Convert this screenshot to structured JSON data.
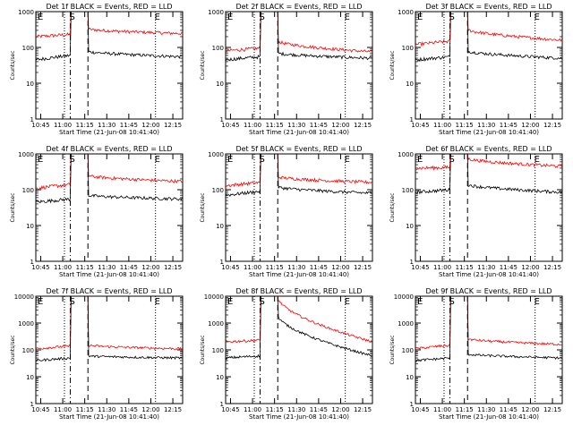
{
  "chart_data": [
    {
      "type": "line",
      "title": "Det 1f BLACK = Events, RED = LLD",
      "xlabel": "Start Time (21-Jun-08 10:41:40)",
      "ylabel": "Counts/sec",
      "xticks": [
        "10:45",
        "11:00",
        "11:15",
        "11:30",
        "11:45",
        "12:00",
        "12:15"
      ],
      "yticks": [
        "1",
        "10",
        "100",
        "1000"
      ],
      "yscale": "log",
      "ylim": [
        1,
        1000
      ],
      "markers": {
        "first_E": "E",
        "S": "S",
        "last_E": "E"
      },
      "series": [
        {
          "color": "#ff0000",
          "pre": [
            200,
            230
          ],
          "post": [
            330,
            245
          ]
        },
        {
          "color": "#000000",
          "pre": [
            45,
            60
          ],
          "post": [
            78,
            55
          ]
        }
      ]
    },
    {
      "type": "line",
      "title": "Det 2f BLACK = Events, RED = LLD",
      "xlabel": "Start Time (21-Jun-08 10:41:40)",
      "ylabel": "Counts/sec",
      "xticks": [
        "10:45",
        "11:00",
        "11:15",
        "11:30",
        "11:45",
        "12:00",
        "12:15"
      ],
      "yticks": [
        "1",
        "10",
        "100",
        "1000"
      ],
      "yscale": "log",
      "ylim": [
        1,
        1000
      ],
      "markers": {
        "first_E": "E",
        "S": "S",
        "last_E": "E"
      },
      "series": [
        {
          "color": "#ff0000",
          "pre": [
            80,
            95
          ],
          "post": [
            150,
            75
          ]
        },
        {
          "color": "#000000",
          "pre": [
            45,
            55
          ],
          "post": [
            70,
            50
          ]
        }
      ]
    },
    {
      "type": "line",
      "title": "Det 3f BLACK = Events, RED = LLD",
      "xlabel": "Start Time (21-Jun-08 10:41:40)",
      "ylabel": "Counts/sec",
      "xticks": [
        "10:45",
        "11:00",
        "11:15",
        "11:30",
        "11:45",
        "12:00",
        "12:15"
      ],
      "yticks": [
        "1",
        "10",
        "100",
        "1000"
      ],
      "yscale": "log",
      "ylim": [
        1,
        1000
      ],
      "markers": {
        "first_E": "E",
        "S": "S",
        "last_E": "E"
      },
      "series": [
        {
          "color": "#ff0000",
          "pre": [
            120,
            150
          ],
          "post": [
            320,
            160
          ]
        },
        {
          "color": "#000000",
          "pre": [
            45,
            55
          ],
          "post": [
            80,
            50
          ]
        }
      ]
    },
    {
      "type": "line",
      "title": "Det 4f BLACK = Events, RED = LLD",
      "xlabel": "Start Time (21-Jun-08 10:41:40)",
      "ylabel": "Counts/sec",
      "xticks": [
        "10:45",
        "11:00",
        "11:15",
        "11:30",
        "11:45",
        "12:00",
        "12:15"
      ],
      "yticks": [
        "1",
        "10",
        "100",
        "1000"
      ],
      "yscale": "log",
      "ylim": [
        1,
        1000
      ],
      "markers": {
        "first_E": "E",
        "S": "S",
        "last_E": "E"
      },
      "series": [
        {
          "color": "#ff0000",
          "pre": [
            110,
            140
          ],
          "post": [
            250,
            170
          ]
        },
        {
          "color": "#000000",
          "pre": [
            45,
            55
          ],
          "post": [
            70,
            55
          ]
        }
      ]
    },
    {
      "type": "line",
      "title": "Det 5f BLACK = Events, RED = LLD",
      "xlabel": "Start Time (21-Jun-08 10:41:40)",
      "ylabel": "Counts/sec",
      "xticks": [
        "10:45",
        "11:00",
        "11:15",
        "11:30",
        "11:45",
        "12:00",
        "12:15"
      ],
      "yticks": [
        "1",
        "10",
        "100",
        "1000"
      ],
      "yscale": "log",
      "ylim": [
        1,
        1000
      ],
      "markers": {
        "first_E": "E",
        "S": "S",
        "last_E": "E"
      },
      "series": [
        {
          "color": "#ff0000",
          "pre": [
            130,
            160
          ],
          "post": [
            230,
            160
          ]
        },
        {
          "color": "#000000",
          "pre": [
            70,
            90
          ],
          "post": [
            120,
            80
          ]
        }
      ]
    },
    {
      "type": "line",
      "title": "Det 6f BLACK = Events, RED = LLD",
      "xlabel": "Start Time (21-Jun-08 10:41:40)",
      "ylabel": "Counts/sec",
      "xticks": [
        "10:45",
        "11:00",
        "11:15",
        "11:30",
        "11:45",
        "12:00",
        "12:15"
      ],
      "yticks": [
        "1",
        "10",
        "100",
        "1000"
      ],
      "yscale": "log",
      "ylim": [
        1,
        1000
      ],
      "markers": {
        "first_E": "E",
        "S": "S",
        "last_E": "E"
      },
      "series": [
        {
          "color": "#ff0000",
          "pre": [
            400,
            420
          ],
          "post": [
            750,
            450
          ]
        },
        {
          "color": "#000000",
          "pre": [
            85,
            100
          ],
          "post": [
            140,
            85
          ]
        }
      ]
    },
    {
      "type": "line",
      "title": "Det 7f BLACK = Events, RED = LLD",
      "xlabel": "Start Time (21-Jun-08 10:41:40)",
      "ylabel": "Counts/sec",
      "xticks": [
        "10:45",
        "11:00",
        "11:15",
        "11:30",
        "11:45",
        "12:00",
        "12:15"
      ],
      "yticks": [
        "1",
        "10",
        "100",
        "1000",
        "10000"
      ],
      "yscale": "log",
      "ylim": [
        1,
        10000
      ],
      "markers": {
        "first_E": "E",
        "S": "S",
        "last_E": "E"
      },
      "series": [
        {
          "color": "#ff0000",
          "pre": [
            110,
            140
          ],
          "post": [
            150,
            110
          ]
        },
        {
          "color": "#000000",
          "pre": [
            40,
            50
          ],
          "post": [
            60,
            50
          ]
        }
      ]
    },
    {
      "type": "line",
      "title": "Det 8f BLACK = Events, RED = LLD",
      "xlabel": "Start Time (21-Jun-08 10:41:40)",
      "ylabel": "Counts/sec",
      "xticks": [
        "10:45",
        "11:00",
        "11:15",
        "11:30",
        "11:45",
        "12:00",
        "12:15"
      ],
      "yticks": [
        "1",
        "10",
        "100",
        "1000",
        "10000"
      ],
      "yscale": "log",
      "ylim": [
        1,
        10000
      ],
      "markers": {
        "first_E": "E",
        "S": "S",
        "last_E": "E"
      },
      "series": [
        {
          "color": "#ff0000",
          "pre": [
            200,
            230
          ],
          "post": [
            9000,
            200
          ]
        },
        {
          "color": "#000000",
          "pre": [
            50,
            60
          ],
          "post": [
            2000,
            60
          ]
        }
      ]
    },
    {
      "type": "line",
      "title": "Det 9f BLACK = Events, RED = LLD",
      "xlabel": "Start Time (21-Jun-08 10:41:40)",
      "ylabel": "Counts/sec",
      "xticks": [
        "10:45",
        "11:00",
        "11:15",
        "11:30",
        "11:45",
        "12:00",
        "12:15"
      ],
      "yticks": [
        "1",
        "10",
        "100",
        "1000",
        "10000"
      ],
      "yscale": "log",
      "ylim": [
        1,
        10000
      ],
      "markers": {
        "first_E": "E",
        "S": "S",
        "last_E": "E"
      },
      "series": [
        {
          "color": "#ff0000",
          "pre": [
            110,
            150
          ],
          "post": [
            260,
            160
          ]
        },
        {
          "color": "#000000",
          "pre": [
            40,
            50
          ],
          "post": [
            70,
            50
          ]
        }
      ]
    }
  ]
}
